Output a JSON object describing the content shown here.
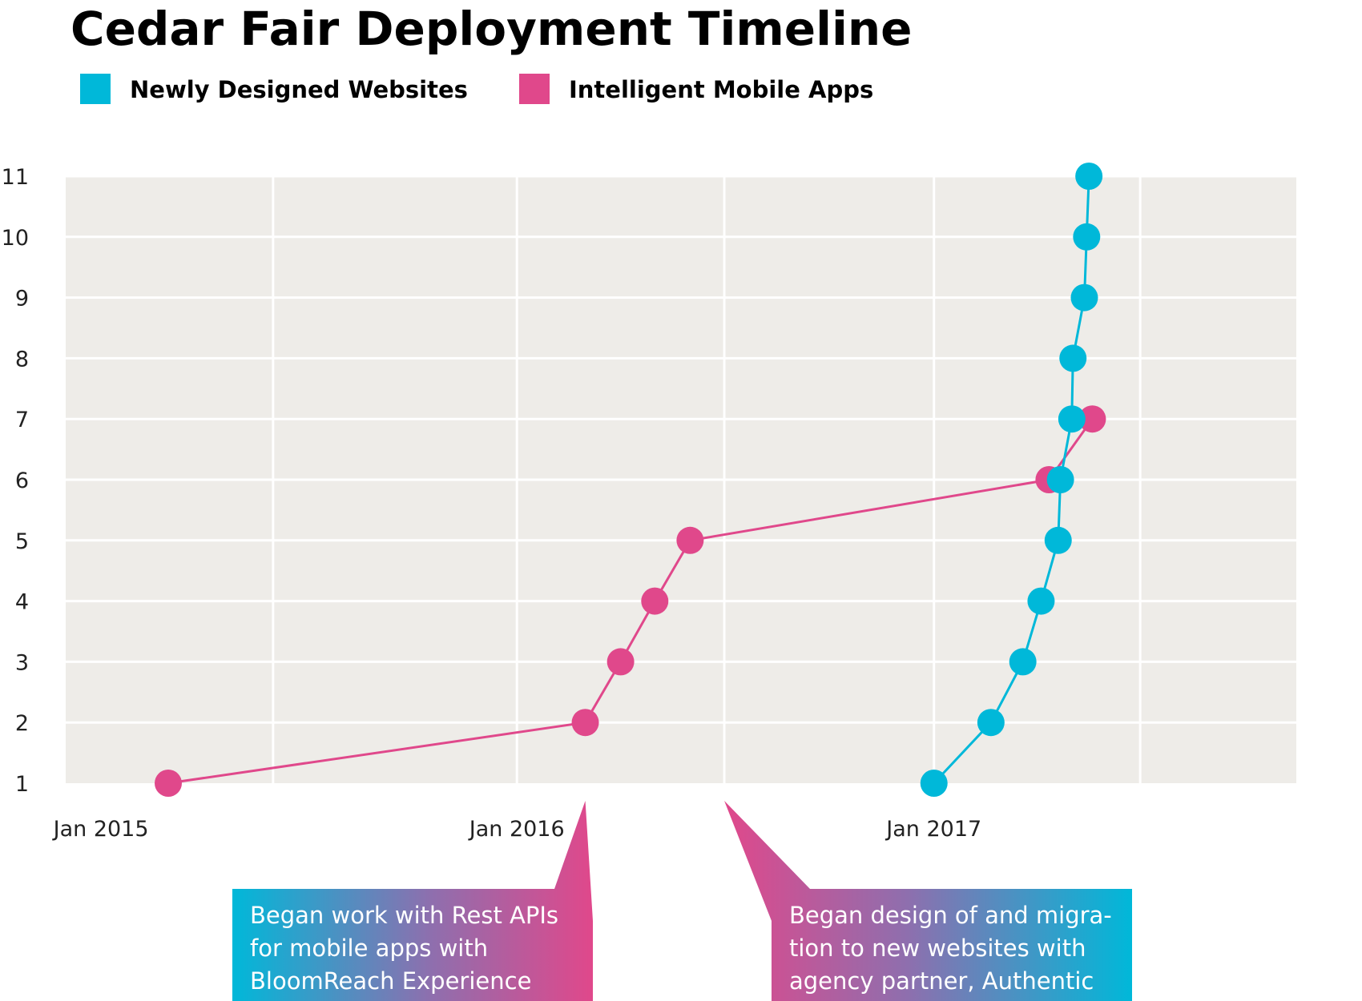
{
  "chart_data": {
    "type": "line",
    "title": "Cedar Fair Deployment Timeline",
    "xlabel": "",
    "ylabel": "",
    "x_type": "date",
    "xlim": [
      "2014-12-01",
      "2017-11-15"
    ],
    "ylim": [
      1,
      11
    ],
    "y_ticks": [
      1,
      2,
      3,
      4,
      5,
      6,
      7,
      8,
      9,
      10,
      11
    ],
    "x_tick_labels": [
      {
        "date": "2015-01-01",
        "label": "Jan 2015"
      },
      {
        "date": "2016-01-01",
        "label": "Jan 2016"
      },
      {
        "date": "2017-01-01",
        "label": "Jan 2017"
      }
    ],
    "x_gridlines": [
      "2015-06-01",
      "2016-01-01",
      "2016-07-01",
      "2017-01-01",
      "2017-07-01"
    ],
    "grid": true,
    "legend_position": "top-left",
    "colors": {
      "background": "#eeece8",
      "grid": "#ffffff",
      "websites": "#00b8d9",
      "apps": "#e0488b"
    },
    "series": [
      {
        "name": "Newly Designed Websites",
        "color": "#00b8d9",
        "points": [
          {
            "x": "2017-01-01",
            "y": 1
          },
          {
            "x": "2017-02-20",
            "y": 2
          },
          {
            "x": "2017-03-20",
            "y": 3
          },
          {
            "x": "2017-04-05",
            "y": 4
          },
          {
            "x": "2017-04-20",
            "y": 5
          },
          {
            "x": "2017-04-22",
            "y": 6
          },
          {
            "x": "2017-05-02",
            "y": 7
          },
          {
            "x": "2017-05-03",
            "y": 8
          },
          {
            "x": "2017-05-13",
            "y": 9
          },
          {
            "x": "2017-05-15",
            "y": 10
          },
          {
            "x": "2017-05-17",
            "y": 11
          }
        ]
      },
      {
        "name": "Intelligent Mobile Apps",
        "color": "#e0488b",
        "points": [
          {
            "x": "2015-03-01",
            "y": 1
          },
          {
            "x": "2016-03-01",
            "y": 2
          },
          {
            "x": "2016-04-01",
            "y": 3
          },
          {
            "x": "2016-05-01",
            "y": 4
          },
          {
            "x": "2016-06-01",
            "y": 5
          },
          {
            "x": "2017-04-12",
            "y": 6
          },
          {
            "x": "2017-05-20",
            "y": 7
          }
        ]
      }
    ],
    "annotations": [
      {
        "lines": [
          "Began work with Rest APIs",
          "for mobile apps with",
          "BloomReach Experience"
        ],
        "points_to": "2016-03-01"
      },
      {
        "lines": [
          "Began design of and migra-",
          "tion to new websites with",
          "agency partner, Authentic"
        ],
        "points_to": "2016-07-01"
      }
    ]
  }
}
